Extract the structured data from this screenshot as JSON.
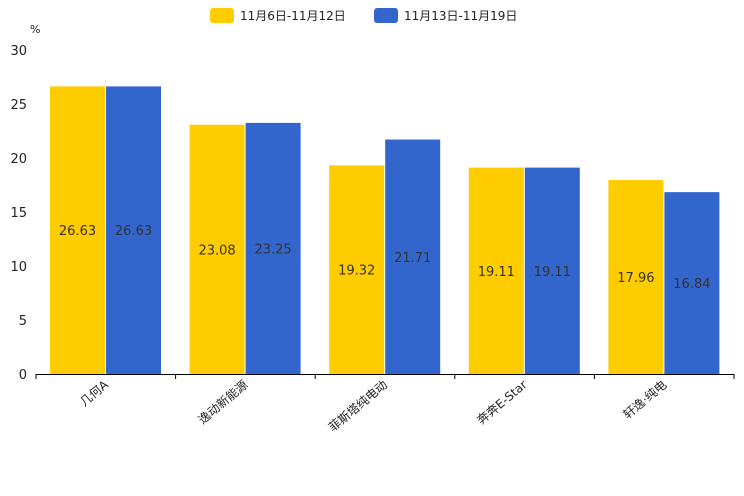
{
  "chart_data": {
    "type": "bar",
    "unit_label": "%",
    "categories": [
      "几何A",
      "逸动新能源",
      "菲斯塔纯电动",
      "奔奔E-Star",
      "轩逸·纯电"
    ],
    "series": [
      {
        "name": "11月6日-11月12日",
        "color": "#FFCC00",
        "values": [
          26.63,
          23.08,
          19.32,
          19.11,
          17.96
        ],
        "labels": [
          "26.63",
          "23.08",
          "19.32",
          "19.11",
          "17.96"
        ]
      },
      {
        "name": "11月13日-11月19日",
        "color": "#3366CC",
        "values": [
          26.63,
          23.25,
          21.71,
          19.11,
          16.84
        ],
        "labels": [
          "26.63",
          "23.25",
          "21.71",
          "19.11",
          "16.84"
        ]
      }
    ],
    "ylim": [
      0,
      30
    ],
    "yticks": [
      0,
      5,
      10,
      15,
      20,
      25,
      30
    ],
    "ytick_labels": [
      "0",
      "5",
      "10",
      "15",
      "20",
      "25",
      "30"
    ],
    "legend_position": "top-center",
    "grid": false,
    "title": "",
    "xlabel": "",
    "ylabel": "%"
  }
}
